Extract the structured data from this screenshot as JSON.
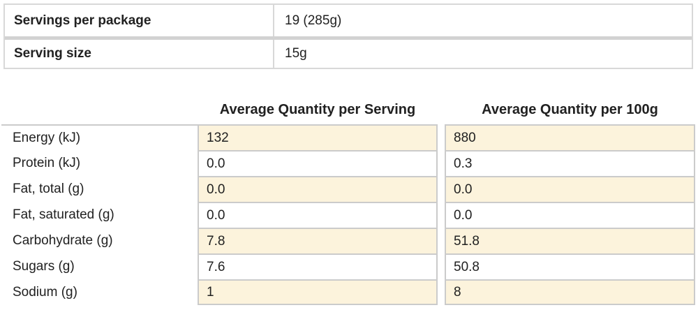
{
  "serving_info": {
    "rows": [
      {
        "label": "Servings per package",
        "value": "19 (285g)"
      },
      {
        "label": "Serving size",
        "value": "15g"
      }
    ]
  },
  "nutrition": {
    "col_headers": [
      "Average Quantity per Serving",
      "Average Quantity per 100g"
    ],
    "rows": [
      {
        "label": "Energy (kJ)",
        "per_serving": "132",
        "per_100g": "880"
      },
      {
        "label": "Protein (kJ)",
        "per_serving": "0.0",
        "per_100g": "0.3"
      },
      {
        "label": "Fat, total (g)",
        "per_serving": "0.0",
        "per_100g": "0.0"
      },
      {
        "label": "Fat, saturated (g)",
        "per_serving": "0.0",
        "per_100g": "0.0"
      },
      {
        "label": "Carbohydrate (g)",
        "per_serving": "7.8",
        "per_100g": "51.8"
      },
      {
        "label": "Sugars (g)",
        "per_serving": "7.6",
        "per_100g": "50.8"
      },
      {
        "label": "Sodium (g)",
        "per_serving": "1",
        "per_100g": "8"
      }
    ]
  },
  "colors": {
    "highlight_beige": "#fcf3dc",
    "border_light": "#d8d8d8",
    "border_medium": "#cbcbcb",
    "text": "#212121"
  }
}
